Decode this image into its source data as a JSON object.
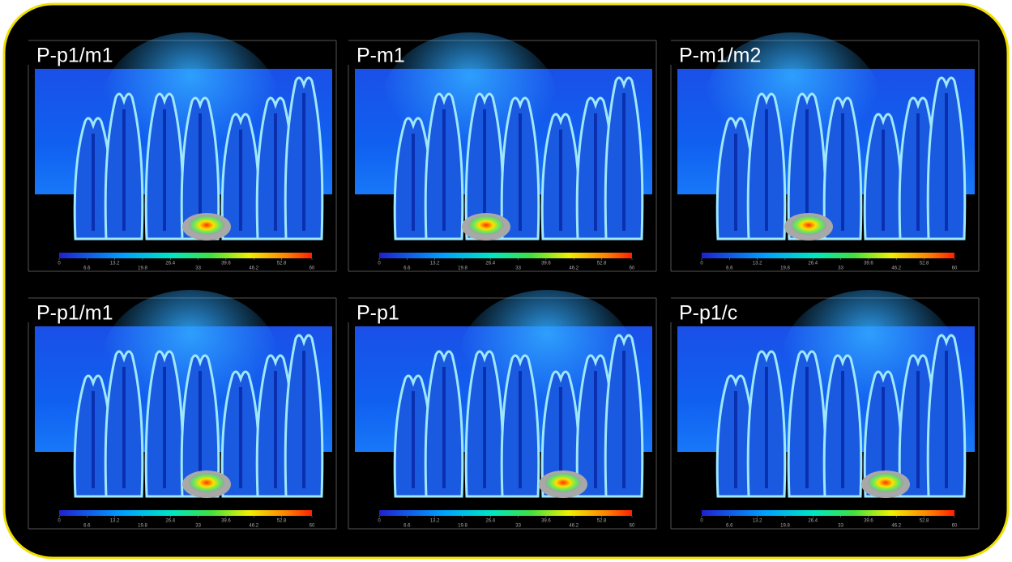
{
  "panels": [
    {
      "title": "P-p1/m1",
      "colorbar_ticks": [
        0,
        6.6,
        13.2,
        19.8,
        26.4,
        33,
        39.6,
        46.2,
        52.8,
        60
      ]
    },
    {
      "title": "P-m1",
      "colorbar_ticks": [
        0,
        6.6,
        13.2,
        19.8,
        26.4,
        33,
        39.6,
        46.2,
        52.8,
        60
      ]
    },
    {
      "title": "P-m1/m2",
      "colorbar_ticks": [
        0,
        6.6,
        13.2,
        19.8,
        26.4,
        33,
        39.6,
        46.2,
        52.8,
        60
      ]
    },
    {
      "title": "P-p1/m1",
      "colorbar_ticks": [
        0,
        6.6,
        13.2,
        19.8,
        26.4,
        33,
        39.6,
        46.2,
        52.8,
        60
      ]
    },
    {
      "title": "P-p1",
      "colorbar_ticks": [
        0,
        6.6,
        13.2,
        19.8,
        26.4,
        33,
        39.6,
        46.2,
        52.8,
        60
      ]
    },
    {
      "title": "P-p1/c",
      "colorbar_ticks": [
        0,
        6.6,
        13.2,
        19.8,
        26.4,
        33,
        39.6,
        46.2,
        52.8,
        60
      ]
    }
  ]
}
